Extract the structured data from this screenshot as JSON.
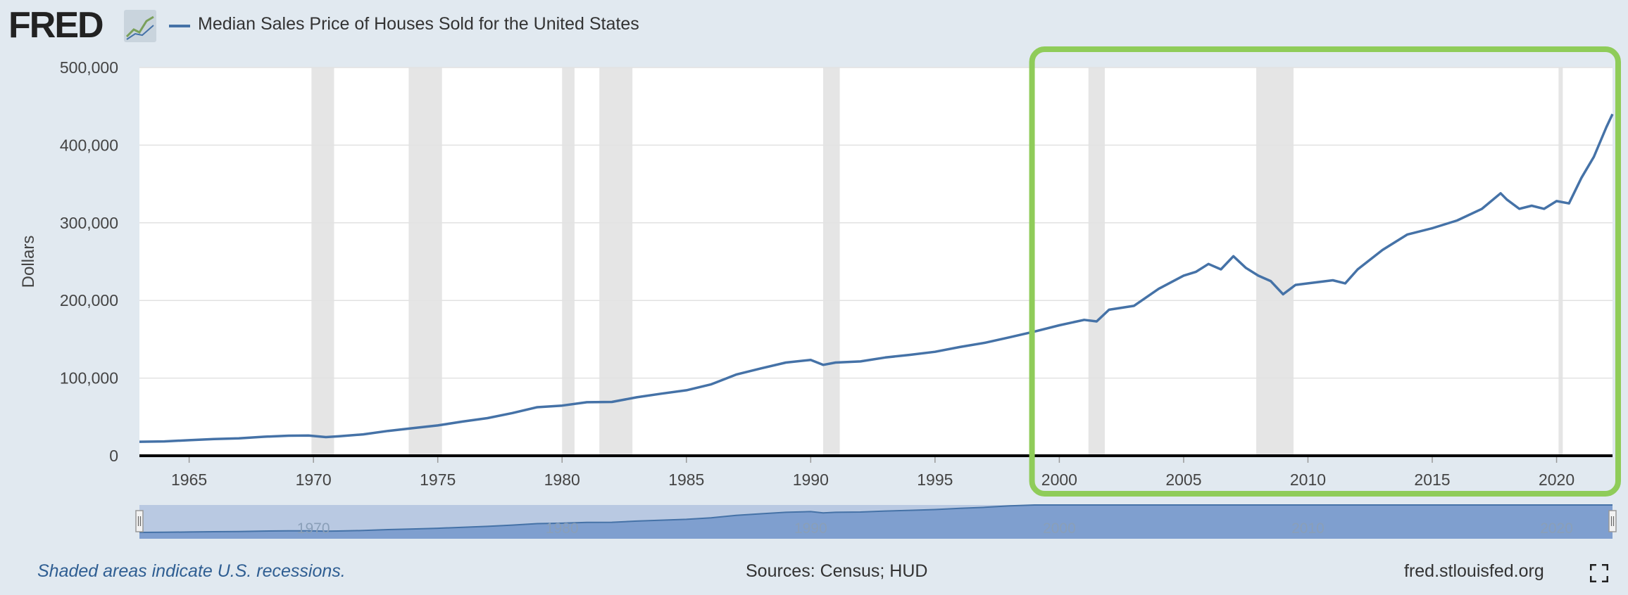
{
  "header": {
    "logo_text": "FRED",
    "legend_label": "Median Sales Price of Houses Sold for the United States",
    "series_color": "#4572a7"
  },
  "footer": {
    "recession_note": "Shaded areas indicate U.S. recessions.",
    "sources": "Sources: Census; HUD",
    "site": "fred.stlouisfed.org"
  },
  "chart_data": {
    "type": "line",
    "ylabel": "Dollars",
    "ylim": [
      0,
      500000
    ],
    "yticks": [
      0,
      100000,
      200000,
      300000,
      400000,
      500000
    ],
    "ytick_labels": [
      "0",
      "100,000",
      "200,000",
      "300,000",
      "400,000",
      "500,000"
    ],
    "xlim": [
      1963.0,
      2022.25
    ],
    "xticks": [
      1965,
      1970,
      1975,
      1980,
      1985,
      1990,
      1995,
      2000,
      2005,
      2010,
      2015,
      2020
    ],
    "navigator_ticks": [
      1970,
      1980,
      1990,
      2000,
      2010,
      2020
    ],
    "grid": true,
    "recessions": [
      [
        1969.92,
        1970.83
      ],
      [
        1973.83,
        1975.17
      ],
      [
        1980.0,
        1980.5
      ],
      [
        1981.5,
        1982.83
      ],
      [
        1990.5,
        1991.17
      ],
      [
        2001.17,
        2001.83
      ],
      [
        2007.92,
        2009.42
      ],
      [
        2020.08,
        2020.25
      ]
    ],
    "highlight_box": {
      "x_from": 1998.9,
      "x_to": 2022.25,
      "color": "#8fcc59"
    },
    "series": [
      {
        "name": "Median Sales Price of Houses Sold for the United States",
        "x": [
          1963.0,
          1964.0,
          1965.0,
          1966.0,
          1967.0,
          1968.0,
          1969.0,
          1969.8,
          1970.5,
          1971.0,
          1972.0,
          1973.0,
          1974.0,
          1975.0,
          1976.0,
          1977.0,
          1978.0,
          1979.0,
          1980.0,
          1981.0,
          1982.0,
          1983.0,
          1984.0,
          1985.0,
          1986.0,
          1987.0,
          1988.0,
          1989.0,
          1990.0,
          1990.5,
          1991.0,
          1992.0,
          1993.0,
          1994.0,
          1995.0,
          1996.0,
          1997.0,
          1998.0,
          1999.0,
          2000.0,
          2001.0,
          2001.5,
          2002.0,
          2003.0,
          2004.0,
          2005.0,
          2005.5,
          2006.0,
          2006.5,
          2007.0,
          2007.5,
          2008.0,
          2008.5,
          2009.0,
          2009.5,
          2010.0,
          2011.0,
          2011.5,
          2012.0,
          2013.0,
          2014.0,
          2015.0,
          2016.0,
          2017.0,
          2017.75,
          2018.0,
          2018.5,
          2019.0,
          2019.5,
          2020.0,
          2020.5,
          2021.0,
          2021.5,
          2022.0,
          2022.25
        ],
        "values": [
          18000,
          18500,
          20000,
          21500,
          22500,
          24500,
          25800,
          26000,
          24000,
          25000,
          27500,
          32000,
          35500,
          39000,
          44000,
          48500,
          55000,
          62500,
          64600,
          68900,
          69300,
          75300,
          80000,
          84300,
          92000,
          104500,
          112500,
          120000,
          123500,
          117000,
          120000,
          121500,
          126500,
          130000,
          133900,
          140000,
          145500,
          152500,
          160000,
          168000,
          175000,
          173000,
          188000,
          193000,
          215000,
          232000,
          237000,
          247000,
          240000,
          257000,
          242000,
          232000,
          225000,
          208000,
          220000,
          222000,
          226000,
          222000,
          240000,
          265000,
          285000,
          293000,
          303000,
          318000,
          338000,
          330000,
          318000,
          322000,
          318000,
          328000,
          325000,
          358000,
          385000,
          423000,
          440000
        ]
      }
    ]
  }
}
